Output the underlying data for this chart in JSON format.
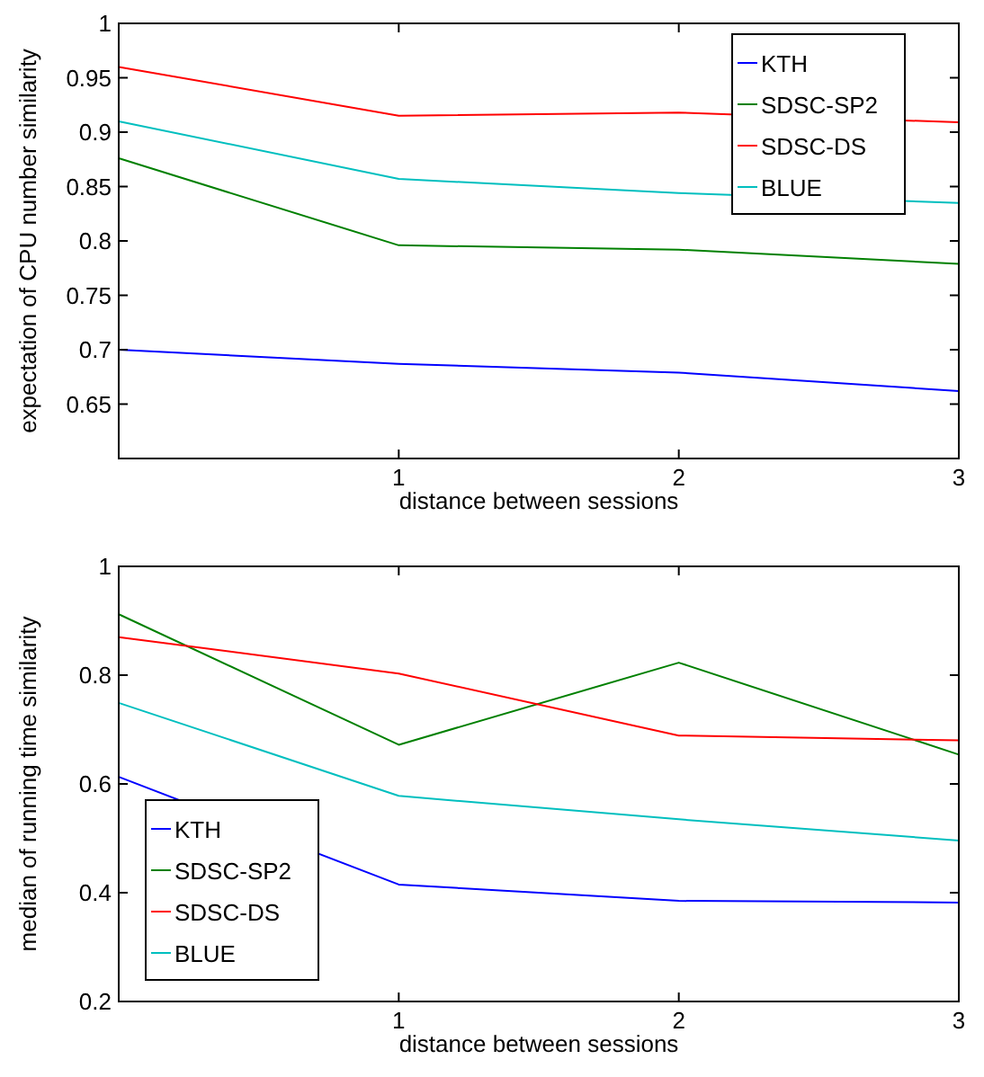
{
  "chart_data": [
    {
      "type": "line",
      "xlabel": "distance between sessions",
      "ylabel": "expectation of CPU number similarity",
      "x": [
        0,
        1,
        2,
        3
      ],
      "xlim": [
        0,
        3
      ],
      "xticks": [
        1,
        2,
        3
      ],
      "ylim": [
        0.6,
        1
      ],
      "yticks": [
        0.65,
        0.7,
        0.75,
        0.8,
        0.85,
        0.9,
        0.95,
        1
      ],
      "legend": "top right",
      "grid": false,
      "marker": "none",
      "series": [
        {
          "name": "KTH",
          "color": "#0000ff",
          "values": [
            0.7,
            0.687,
            0.679,
            0.662
          ]
        },
        {
          "name": "SDSC-SP2",
          "color": "#008000",
          "values": [
            0.876,
            0.796,
            0.792,
            0.779
          ]
        },
        {
          "name": "SDSC-DS",
          "color": "#ff0000",
          "values": [
            0.96,
            0.915,
            0.918,
            0.909
          ]
        },
        {
          "name": "BLUE",
          "color": "#00bfbf",
          "values": [
            0.91,
            0.857,
            0.844,
            0.835
          ]
        }
      ]
    },
    {
      "type": "line",
      "xlabel": "distance between sessions",
      "ylabel": "median of running time similarity",
      "x": [
        0,
        1,
        2,
        3
      ],
      "xlim": [
        0,
        3
      ],
      "xticks": [
        1,
        2,
        3
      ],
      "ylim": [
        0.2,
        1
      ],
      "yticks": [
        0.2,
        0.4,
        0.6,
        0.8,
        1
      ],
      "legend": "bottom left",
      "grid": false,
      "marker": "none",
      "series": [
        {
          "name": "KTH",
          "color": "#0000ff",
          "values": [
            0.613,
            0.415,
            0.385,
            0.382
          ]
        },
        {
          "name": "SDSC-SP2",
          "color": "#008000",
          "values": [
            0.912,
            0.672,
            0.823,
            0.654
          ]
        },
        {
          "name": "SDSC-DS",
          "color": "#ff0000",
          "values": [
            0.87,
            0.803,
            0.689,
            0.68
          ]
        },
        {
          "name": "BLUE",
          "color": "#00bfbf",
          "values": [
            0.749,
            0.578,
            0.535,
            0.496
          ]
        }
      ]
    }
  ]
}
